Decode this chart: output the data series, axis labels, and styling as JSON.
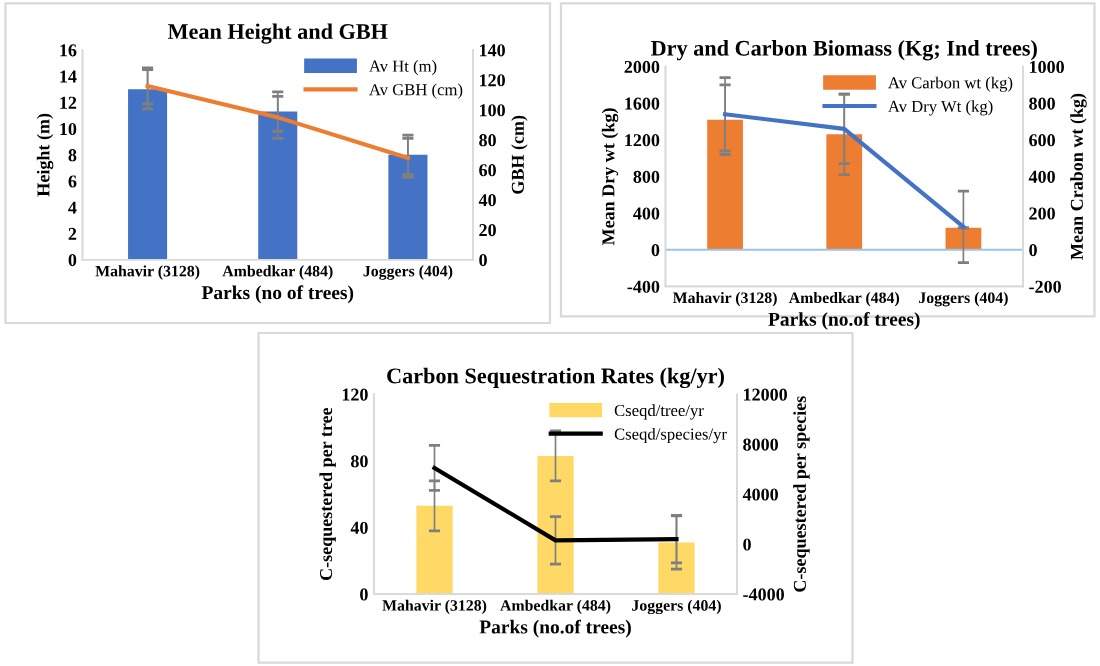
{
  "chart_data": [
    {
      "type": "bar",
      "title": "Mean Height and GBH",
      "xlabel": "Parks (no of trees)",
      "ylabel": "Height (m)",
      "y2label": "GBH (cm)",
      "categories": [
        "Mahavir (3128)",
        "Ambedkar (484)",
        "Joggers (404)"
      ],
      "series": [
        {
          "name": "Av Ht (m)",
          "color": "#4472c4",
          "values": [
            13,
            11.3,
            8
          ],
          "errors": [
            1.5,
            1.5,
            1.5
          ]
        },
        {
          "name": "Av GBH (cm)",
          "type": "line",
          "axis": "y2",
          "color": "#ed7d31",
          "values": [
            116,
            95,
            68
          ],
          "errors": [
            12,
            14,
            13
          ]
        }
      ],
      "ylim": [
        0,
        16
      ],
      "yticks": [
        0,
        2,
        4,
        6,
        8,
        10,
        12,
        14,
        16
      ],
      "y2lim": [
        0,
        140
      ],
      "y2ticks": [
        0,
        20,
        40,
        60,
        80,
        100,
        120,
        140
      ],
      "legend": "top right"
    },
    {
      "type": "bar",
      "title": "Dry and Carbon Biomass (Kg; Ind trees)",
      "xlabel": "Parks (no.of trees)",
      "ylabel": "Mean Dry wt (kg)",
      "y2label": "Mean Crabon wt (kg)",
      "categories": [
        "Mahavir (3128)",
        "Ambedkar (484)",
        "Joggers (404)"
      ],
      "series": [
        {
          "name": "Av Carbon wt (kg)",
          "axis": "y2",
          "color": "#ed7d31",
          "values": [
            710,
            630,
            120
          ],
          "errors": [
            190,
            220,
            null
          ]
        },
        {
          "name": "Av Dry Wt (kg)",
          "type": "line",
          "color": "#4472c4",
          "values": [
            1480,
            1320,
            250
          ],
          "errors": [
            400,
            380,
            390
          ]
        }
      ],
      "ref_lines": [
        {
          "axis": "y",
          "value": 0,
          "color": "#9dc3e6"
        }
      ],
      "ylim": [
        -400,
        2000
      ],
      "yticks": [
        -400,
        0,
        400,
        800,
        1200,
        1600,
        2000
      ],
      "y2lim": [
        -200,
        1000
      ],
      "y2ticks": [
        -200,
        0,
        200,
        400,
        600,
        800,
        1000
      ],
      "legend": "top right"
    },
    {
      "type": "bar",
      "title": "Carbon Sequestration Rates (kg/yr)",
      "xlabel": "Parks (no.of trees)",
      "ylabel": "C-sequestered per tree",
      "y2label": "C-sequestered per species",
      "categories": [
        "Mahavir (3128)",
        "Ambedkar (484)",
        "Joggers (404)"
      ],
      "series": [
        {
          "name": "Cseqd/tree/yr",
          "color": "#ffd966",
          "values": [
            53,
            83,
            31
          ],
          "errors": [
            15,
            15,
            16
          ]
        },
        {
          "name": "Cseqd/species/yr",
          "type": "line",
          "axis": "y2",
          "color": "#000000",
          "values": [
            6100,
            300,
            400
          ],
          "errors": [
            1800,
            1900,
            1900
          ]
        }
      ],
      "ylim": [
        0,
        120
      ],
      "yticks": [
        0,
        40,
        80,
        120
      ],
      "y2lim": [
        -4000,
        12000
      ],
      "y2ticks": [
        -4000,
        0,
        4000,
        8000,
        12000
      ],
      "legend": "top right"
    }
  ]
}
